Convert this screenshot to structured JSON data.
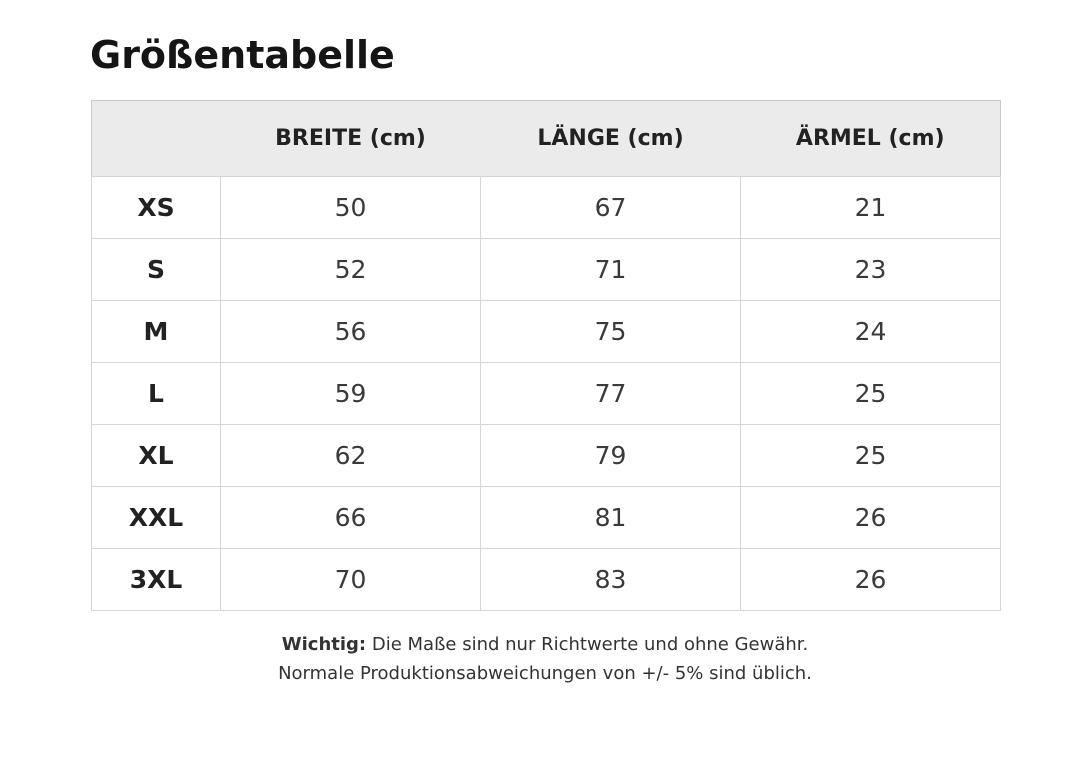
{
  "title": "Größentabelle",
  "table": {
    "headers": [
      "",
      "BREITE (cm)",
      "LÄNGE (cm)",
      "ÄRMEL (cm)"
    ],
    "rows": [
      {
        "size": "XS",
        "breite": "50",
        "laenge": "67",
        "aermel": "21"
      },
      {
        "size": "S",
        "breite": "52",
        "laenge": "71",
        "aermel": "23"
      },
      {
        "size": "M",
        "breite": "56",
        "laenge": "75",
        "aermel": "24"
      },
      {
        "size": "L",
        "breite": "59",
        "laenge": "77",
        "aermel": "25"
      },
      {
        "size": "XL",
        "breite": "62",
        "laenge": "79",
        "aermel": "25"
      },
      {
        "size": "XXL",
        "breite": "66",
        "laenge": "81",
        "aermel": "26"
      },
      {
        "size": "3XL",
        "breite": "70",
        "laenge": "83",
        "aermel": "26"
      }
    ]
  },
  "note": {
    "label": "Wichtig:",
    "line1": "Die Maße sind nur Richtwerte und ohne Gewähr.",
    "line2": "Normale Produktionsabweichungen von +/- 5% sind üblich."
  }
}
